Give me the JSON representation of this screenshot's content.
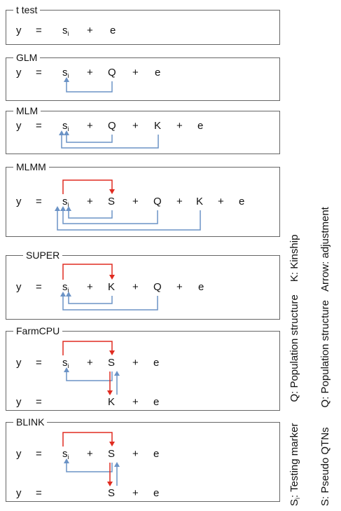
{
  "colors": {
    "adjust_arrow": "#6b93c6",
    "pseudo_arrow": "#e02b20",
    "border": "#666666"
  },
  "panels": [
    {
      "title": "t test",
      "eq": {
        "y": "y",
        "eq": "=",
        "s": "s",
        "i": "i",
        "p1": "+",
        "e": "e"
      }
    },
    {
      "title": "GLM",
      "eq": {
        "y": "y",
        "eq": "=",
        "s": "s",
        "i": "i",
        "p1": "+",
        "Q": "Q",
        "p2": "+",
        "e": "e"
      }
    },
    {
      "title": "MLM",
      "eq": {
        "y": "y",
        "eq": "=",
        "s": "s",
        "i": "i",
        "p1": "+",
        "Q": "Q",
        "p2": "+",
        "K": "K",
        "p3": "+",
        "e": "e"
      }
    },
    {
      "title": "MLMM",
      "eq": {
        "y": "y",
        "eq": "=",
        "s": "s",
        "i": "i",
        "p1": "+",
        "S": "S",
        "p2": "+",
        "Q": "Q",
        "p3": "+",
        "K": "K",
        "p4": "+",
        "e": "e"
      }
    },
    {
      "title": "SUPER",
      "eq": {
        "y": "y",
        "eq": "=",
        "s": "s",
        "i": "i",
        "p1": "+",
        "K": "K",
        "p2": "+",
        "Q": "Q",
        "p3": "+",
        "e": "e"
      }
    },
    {
      "title": "FarmCPU",
      "eq": {
        "y": "y",
        "eq": "=",
        "s": "s",
        "i": "i",
        "p1": "+",
        "S": "S",
        "p2": "+",
        "e": "e"
      },
      "eq2": {
        "y": "y",
        "eq": "=",
        "K": "K",
        "p": "+",
        "e": "e"
      }
    },
    {
      "title": "BLINK",
      "eq": {
        "y": "y",
        "eq": "=",
        "s": "s",
        "i": "i",
        "p1": "+",
        "S": "S",
        "p2": "+",
        "e": "e"
      },
      "eq2": {
        "y": "y",
        "eq": "=",
        "S": "S",
        "p": "+",
        "e": "e"
      }
    }
  ],
  "legend": {
    "col1": {
      "s_main": "S",
      "s_sub": "i",
      "s_rest": ": Testing marker",
      "q": "Q: Population structure",
      "k": "K: Kinship"
    },
    "col2": {
      "s": "S: Pseudo QTNs",
      "q": "Q: Population structure",
      "a": "Arrow: adjustment"
    }
  }
}
